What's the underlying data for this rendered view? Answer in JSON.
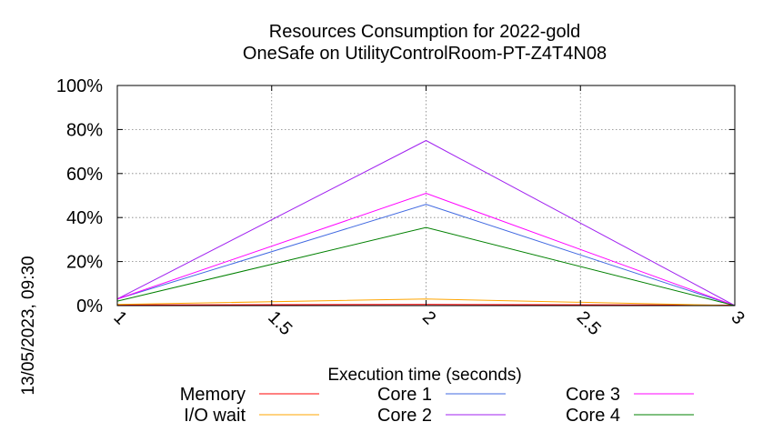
{
  "chart_data": {
    "type": "line",
    "title": "Resources Consumption for 2022-gold",
    "subtitle": "OneSafe on UtilityControlRoom-PT-Z4T4N08",
    "xlabel": "Execution time (seconds)",
    "ylabel": "13/05/2023, 09:30",
    "x": [
      1,
      2,
      3
    ],
    "xlim": [
      1,
      3
    ],
    "ylim": [
      0,
      100
    ],
    "x_ticks": [
      {
        "value": 1,
        "label": "1"
      },
      {
        "value": 1.5,
        "label": "1.5"
      },
      {
        "value": 2,
        "label": "2"
      },
      {
        "value": 2.5,
        "label": "2.5"
      },
      {
        "value": 3,
        "label": "3"
      }
    ],
    "y_ticks": [
      {
        "value": 0,
        "label": "0%"
      },
      {
        "value": 20,
        "label": "20%"
      },
      {
        "value": 40,
        "label": "40%"
      },
      {
        "value": 60,
        "label": "60%"
      },
      {
        "value": 80,
        "label": "80%"
      },
      {
        "value": 100,
        "label": "100%"
      }
    ],
    "grid": true,
    "legend_position": "bottom",
    "series": [
      {
        "name": "Memory",
        "color": "#ff0000",
        "values": [
          0.3,
          0.5,
          0.2
        ]
      },
      {
        "name": "I/O wait",
        "color": "#ffa500",
        "values": [
          0.5,
          3,
          0
        ]
      },
      {
        "name": "Core 1",
        "color": "#4169e1",
        "values": [
          3,
          46,
          0
        ]
      },
      {
        "name": "Core 2",
        "color": "#a020f0",
        "values": [
          3,
          75,
          0
        ]
      },
      {
        "name": "Core 3",
        "color": "#ff00ff",
        "values": [
          3,
          51,
          0
        ]
      },
      {
        "name": "Core 4",
        "color": "#008000",
        "values": [
          2,
          35.5,
          0
        ]
      }
    ]
  }
}
